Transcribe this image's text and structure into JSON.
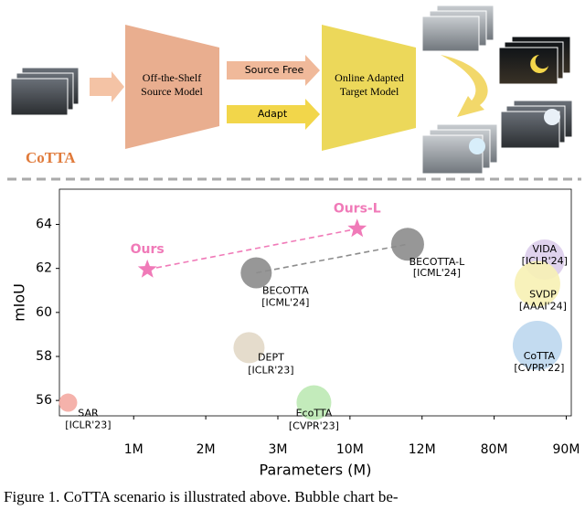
{
  "diagram": {
    "source_model": "Off-the-Shelf Source Model",
    "source_free": "Source Free",
    "adapt": "Adapt",
    "target_model": "Online Adapted Target Model",
    "method": "CoTTA"
  },
  "chart_data": {
    "type": "scatter",
    "xlabel": "Parameters (M)",
    "ylabel": "mIoU",
    "xlim": [
      -0.03,
      7.07
    ],
    "ylim": [
      55.3,
      65.6
    ],
    "xticks": [
      {
        "value": 1,
        "label": "1M"
      },
      {
        "value": 2,
        "label": "2M"
      },
      {
        "value": 3,
        "label": "3M"
      },
      {
        "value": 4,
        "label": "10M"
      },
      {
        "value": 5,
        "label": "12M"
      },
      {
        "value": 6,
        "label": "80M"
      },
      {
        "value": 7,
        "label": "90M"
      }
    ],
    "yticks": [
      56,
      58,
      60,
      62,
      64
    ],
    "points": [
      {
        "name": "Ours",
        "marker": "star",
        "color": "#f07ab8",
        "x": 1.19,
        "y": 61.95,
        "size": 11
      },
      {
        "name": "Ours-L",
        "marker": "star",
        "color": "#f07ab8",
        "x": 4.1,
        "y": 63.8,
        "size": 11
      },
      {
        "name": "SAR",
        "venue": "[ICLR'23]",
        "color": "#f4aaa2",
        "x": 0.09,
        "y": 55.9,
        "size": 10
      },
      {
        "name": "BECOTTA",
        "venue": "[ICML'24]",
        "color": "#8c8c8c",
        "x": 2.7,
        "y": 61.8,
        "size": 17
      },
      {
        "name": "BECOTTA-L",
        "venue": "[ICML'24]",
        "color": "#8c8c8c",
        "x": 4.8,
        "y": 63.1,
        "size": 18
      },
      {
        "name": "DEPT",
        "venue": "[ICLR'23]",
        "color": "#e2d8c6",
        "x": 2.6,
        "y": 58.4,
        "size": 17
      },
      {
        "name": "EcoTTA",
        "venue": "[CVPR'23]",
        "color": "#bde9b4",
        "x": 3.5,
        "y": 55.9,
        "size": 19
      },
      {
        "name": "VIDA",
        "venue": "[ICLR'24]",
        "color": "#dccdeb",
        "x": 6.7,
        "y": 62.4,
        "size": 22
      },
      {
        "name": "SVDP",
        "venue": "[AAAI'24]",
        "color": "#f7f1b4",
        "x": 6.6,
        "y": 61.3,
        "size": 25
      },
      {
        "name": "CoTTA",
        "venue": "[CVPR'22]",
        "color": "#bcd7ee",
        "x": 6.6,
        "y": 58.5,
        "size": 27
      }
    ]
  },
  "caption": "Figure 1. CoTTA scenario is illustrated above. Bubble chart be-"
}
